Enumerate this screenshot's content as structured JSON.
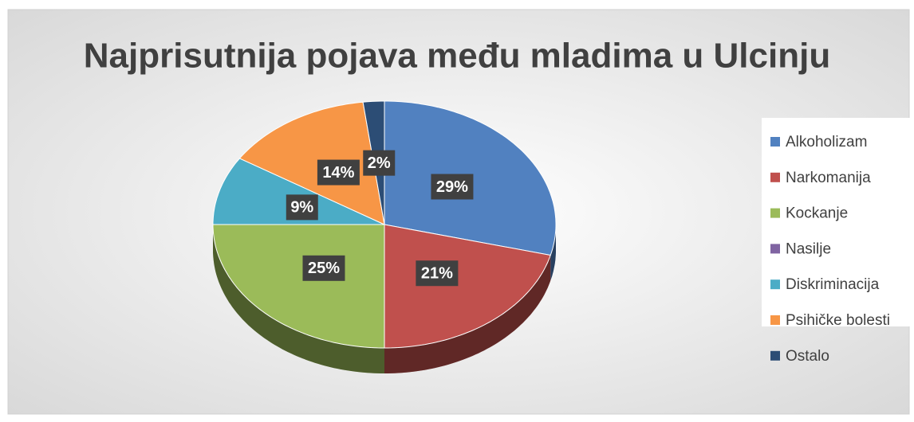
{
  "chart_data": {
    "type": "pie",
    "title": "Najprisutnija pojava među mladima u Ulcinju",
    "categories": [
      "Alkoholizam",
      "Narkomanija",
      "Kockanje",
      "Nasilje",
      "Diskriminacija",
      "Psihičke bolesti",
      "Ostalo"
    ],
    "values": [
      29,
      21,
      25,
      0,
      9,
      14,
      2
    ],
    "value_labels": [
      "29%",
      "21%",
      "25%",
      null,
      "9%",
      "14%",
      "2%"
    ],
    "colors": [
      "#5181c0",
      "#c0504d",
      "#9bbb59",
      "#8064a2",
      "#4bacc6",
      "#f79646",
      "#2c4d75"
    ],
    "legend": "right"
  }
}
